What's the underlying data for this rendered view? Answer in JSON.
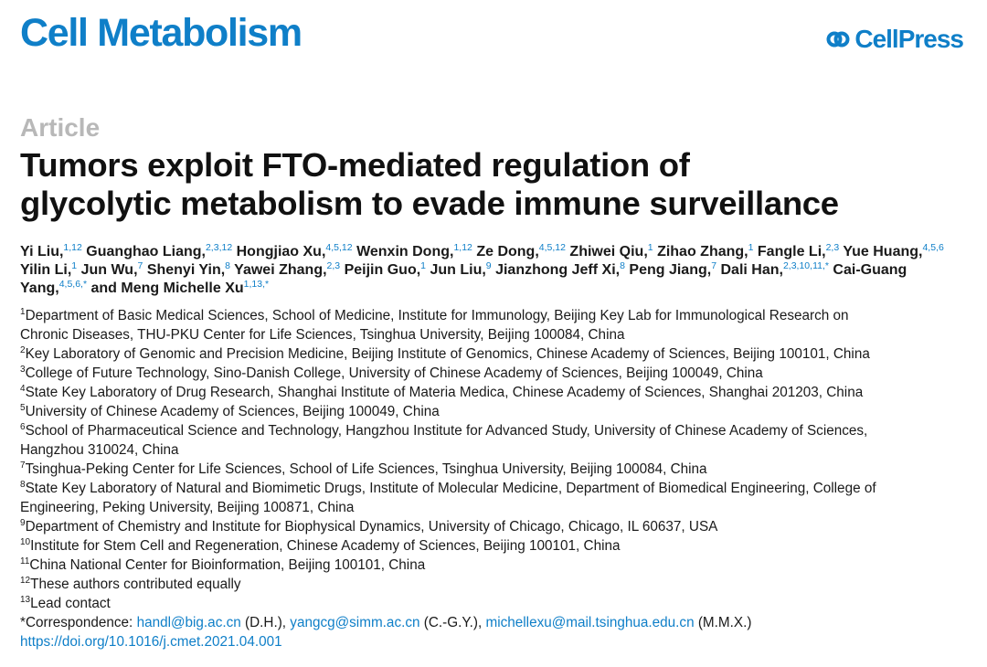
{
  "header": {
    "journal": "Cell Metabolism",
    "publisher": "CellPress"
  },
  "article_label": "Article",
  "title_lines": [
    "Tumors exploit FTO-mediated regulation of",
    "glycolytic metabolism to evade immune surveillance"
  ],
  "authors": [
    {
      "name": "Yi Liu,",
      "sup": "1,12"
    },
    {
      "name": "Guanghao Liang,",
      "sup": "2,3,12"
    },
    {
      "name": "Hongjiao Xu,",
      "sup": "4,5,12"
    },
    {
      "name": "Wenxin Dong,",
      "sup": "1,12"
    },
    {
      "name": "Ze Dong,",
      "sup": "4,5,12"
    },
    {
      "name": "Zhiwei Qiu,",
      "sup": "1"
    },
    {
      "name": "Zihao Zhang,",
      "sup": "1"
    },
    {
      "name": "Fangle Li,",
      "sup": "2,3"
    },
    {
      "name": "Yue Huang,",
      "sup": "4,5,6"
    },
    {
      "name": "Yilin Li,",
      "sup": "1"
    },
    {
      "name": "Jun Wu,",
      "sup": "7"
    },
    {
      "name": "Shenyi Yin,",
      "sup": "8"
    },
    {
      "name": "Yawei Zhang,",
      "sup": "2,3"
    },
    {
      "name": "Peijin Guo,",
      "sup": "1"
    },
    {
      "name": "Jun Liu,",
      "sup": "9"
    },
    {
      "name": "Jianzhong Jeff Xi,",
      "sup": "8"
    },
    {
      "name": "Peng Jiang,",
      "sup": "7"
    },
    {
      "name": "Dali Han,",
      "sup": "2,3,10,11,*"
    },
    {
      "name": "Cai-Guang Yang,",
      "sup": "4,5,6,*"
    },
    {
      "name": "and Meng Michelle Xu",
      "sup": "1,13,*"
    }
  ],
  "affiliations": [
    {
      "sup": "1",
      "text": "Department of Basic Medical Sciences, School of Medicine, Institute for Immunology, Beijing Key Lab for Immunological Research on",
      "cont": "Chronic Diseases, THU-PKU Center for Life Sciences, Tsinghua University, Beijing 100084, China"
    },
    {
      "sup": "2",
      "text": "Key Laboratory of Genomic and Precision Medicine, Beijing Institute of Genomics, Chinese Academy of Sciences, Beijing 100101, China",
      "cont": ""
    },
    {
      "sup": "3",
      "text": "College of Future Technology, Sino-Danish College, University of Chinese Academy of Sciences, Beijing 100049, China",
      "cont": ""
    },
    {
      "sup": "4",
      "text": "State Key Laboratory of Drug Research, Shanghai Institute of Materia Medica, Chinese Academy of Sciences, Shanghai 201203, China",
      "cont": ""
    },
    {
      "sup": "5",
      "text": "University of Chinese Academy of Sciences, Beijing 100049, China",
      "cont": ""
    },
    {
      "sup": "6",
      "text": "School of Pharmaceutical Science and Technology, Hangzhou Institute for Advanced Study, University of Chinese Academy of Sciences,",
      "cont": "Hangzhou 310024, China"
    },
    {
      "sup": "7",
      "text": "Tsinghua-Peking Center for Life Sciences, School of Life Sciences, Tsinghua University, Beijing 100084, China",
      "cont": ""
    },
    {
      "sup": "8",
      "text": "State Key Laboratory of Natural and Biomimetic Drugs, Institute of Molecular Medicine, Department of Biomedical Engineering, College of",
      "cont": "Engineering, Peking University, Beijing 100871, China"
    },
    {
      "sup": "9",
      "text": "Department of Chemistry and Institute for Biophysical Dynamics, University of Chicago, Chicago, IL 60637, USA",
      "cont": ""
    },
    {
      "sup": "10",
      "text": "Institute for Stem Cell and Regeneration, Chinese Academy of Sciences, Beijing 100101, China",
      "cont": ""
    },
    {
      "sup": "11",
      "text": "China National Center for Bioinformation, Beijing 100101, China",
      "cont": ""
    },
    {
      "sup": "12",
      "text": "These authors contributed equally",
      "cont": ""
    },
    {
      "sup": "13",
      "text": "Lead contact",
      "cont": ""
    }
  ],
  "correspondence": {
    "prefix": "*Correspondence: ",
    "entries": [
      {
        "email": "handl@big.ac.cn",
        "who": " (D.H.), "
      },
      {
        "email": "yangcg@simm.ac.cn",
        "who": " (C.-G.Y.), "
      },
      {
        "email": "michellexu@mail.tsinghua.edu.cn",
        "who": " (M.M.X.)"
      }
    ]
  },
  "doi": "https://doi.org/10.1016/j.cmet.2021.04.001",
  "colors": {
    "brand_blue": "#0f7fc8",
    "label_gray": "#b8b8b8"
  }
}
